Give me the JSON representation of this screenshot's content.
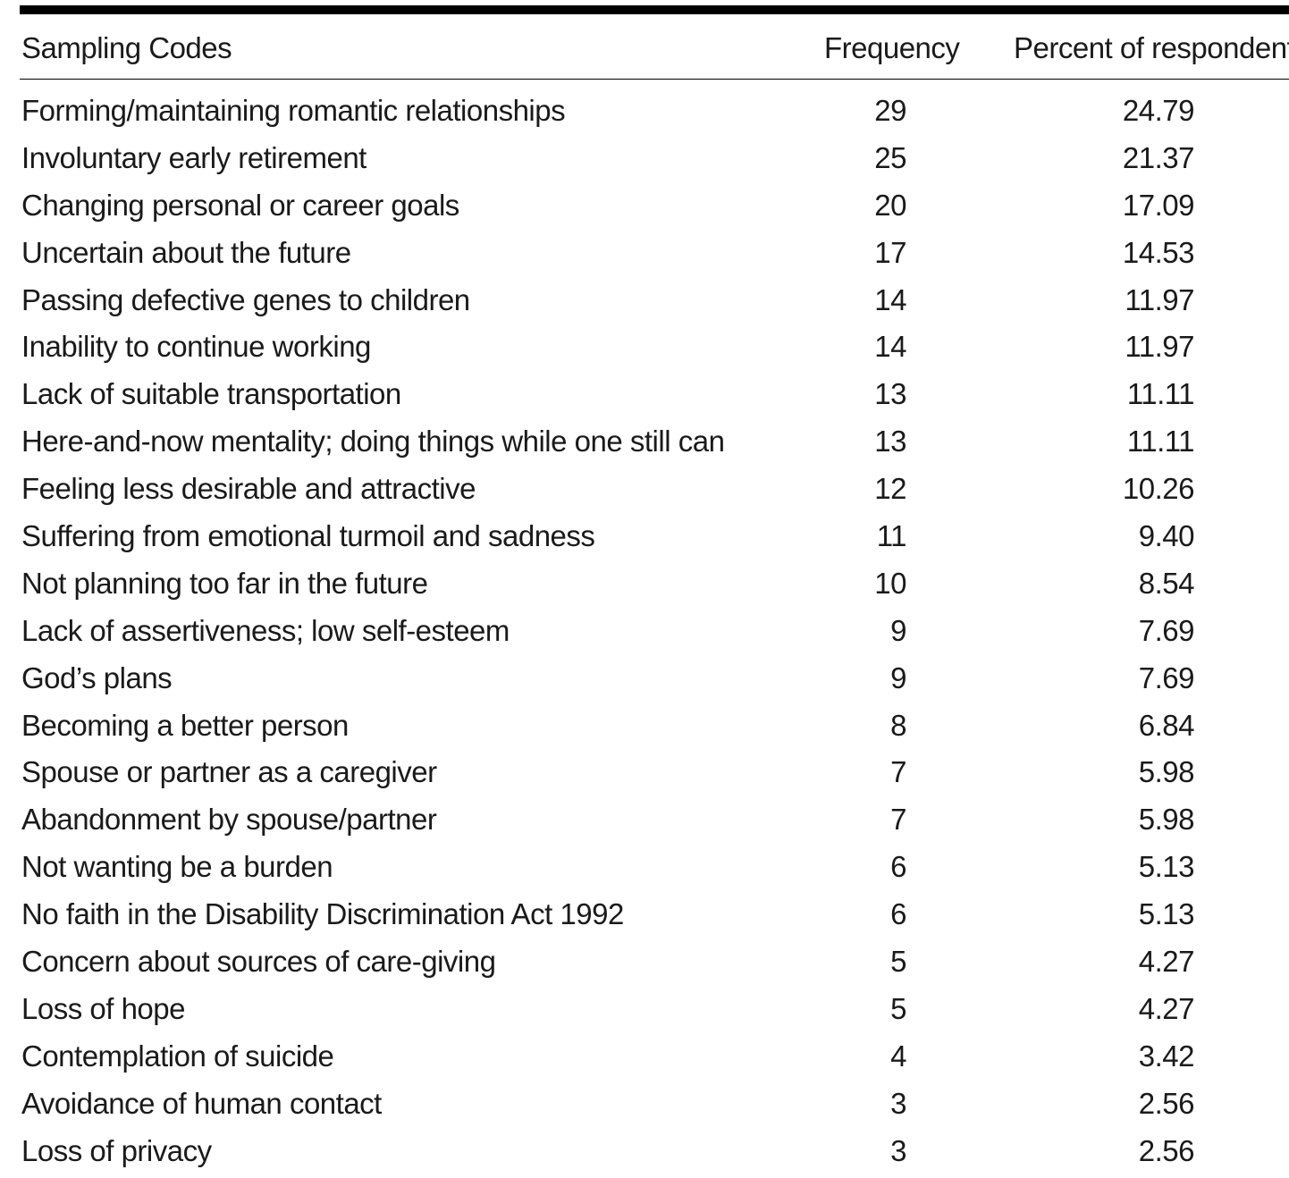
{
  "table": {
    "headers": {
      "code": "Sampling Codes",
      "frequency": "Frequency",
      "percent": "Percent of respondents"
    },
    "rows": [
      {
        "code": "Forming/maintaining romantic relationships",
        "frequency": "29",
        "percent": "24.79"
      },
      {
        "code": "Involuntary early retirement",
        "frequency": "25",
        "percent": "21.37"
      },
      {
        "code": "Changing personal or career goals",
        "frequency": "20",
        "percent": "17.09"
      },
      {
        "code": "Uncertain about the future",
        "frequency": "17",
        "percent": "14.53"
      },
      {
        "code": "Passing defective genes to children",
        "frequency": "14",
        "percent": "11.97"
      },
      {
        "code": "Inability to continue working",
        "frequency": "14",
        "percent": "11.97"
      },
      {
        "code": "Lack of suitable transportation",
        "frequency": "13",
        "percent": "11.11"
      },
      {
        "code": "Here-and-now mentality; doing things while one still can",
        "frequency": "13",
        "percent": "11.11"
      },
      {
        "code": "Feeling less desirable and attractive",
        "frequency": "12",
        "percent": "10.26"
      },
      {
        "code": "Suffering from emotional turmoil and sadness",
        "frequency": "11",
        "percent": "9.40"
      },
      {
        "code": "Not planning too far in the future",
        "frequency": "10",
        "percent": "8.54"
      },
      {
        "code": "Lack of assertiveness; low self-esteem",
        "frequency": "9",
        "percent": "7.69"
      },
      {
        "code": "God’s plans",
        "frequency": "9",
        "percent": "7.69"
      },
      {
        "code": "Becoming a better person",
        "frequency": "8",
        "percent": "6.84"
      },
      {
        "code": "Spouse or partner as a caregiver",
        "frequency": "7",
        "percent": "5.98"
      },
      {
        "code": "Abandonment by spouse/partner",
        "frequency": "7",
        "percent": "5.98"
      },
      {
        "code": "Not wanting be a burden",
        "frequency": "6",
        "percent": "5.13"
      },
      {
        "code": "No faith in the Disability Discrimination Act 1992",
        "frequency": "6",
        "percent": "5.13"
      },
      {
        "code": "Concern about sources of care-giving",
        "frequency": "5",
        "percent": "4.27"
      },
      {
        "code": "Loss of hope",
        "frequency": "5",
        "percent": "4.27"
      },
      {
        "code": "Contemplation of suicide",
        "frequency": "4",
        "percent": "3.42"
      },
      {
        "code": "Avoidance of human contact",
        "frequency": "3",
        "percent": "2.56"
      },
      {
        "code": "Loss of privacy",
        "frequency": "3",
        "percent": "2.56"
      }
    ]
  }
}
